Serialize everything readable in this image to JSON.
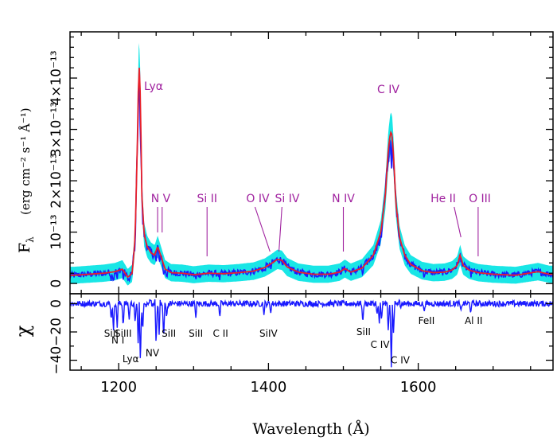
{
  "chart_data": [
    {
      "type": "line",
      "panel": "top",
      "ylabel_main": "F",
      "ylabel_sub": "λ",
      "ylabel_units": "(erg cm⁻² s⁻¹ Å⁻¹)",
      "xlim": [
        1135,
        1780
      ],
      "ylim": [
        -0.2,
        4.9
      ],
      "yscale_note": "×10⁻¹³",
      "y_ticks": [
        {
          "value": 0,
          "label": "0"
        },
        {
          "value": 1,
          "label": "10⁻¹³"
        },
        {
          "value": 2,
          "label": "2×10⁻¹³"
        },
        {
          "value": 3,
          "label": "3×10⁻¹³"
        },
        {
          "value": 4,
          "label": "4×10⁻¹³"
        }
      ],
      "colors": {
        "error_band": "#19e6e6",
        "data": "#1a1aff",
        "model": "#e8202a",
        "annotation": "#a0229f"
      },
      "series": [
        {
          "name": "model",
          "x": [
            1140,
            1160,
            1180,
            1195,
            1205,
            1212,
            1218,
            1222,
            1225,
            1227,
            1229,
            1231,
            1234,
            1238,
            1243,
            1248,
            1252,
            1256,
            1262,
            1270,
            1285,
            1300,
            1320,
            1340,
            1360,
            1380,
            1395,
            1405,
            1412,
            1418,
            1425,
            1440,
            1460,
            1480,
            1495,
            1502,
            1510,
            1525,
            1540,
            1550,
            1556,
            1560,
            1563,
            1565,
            1567,
            1570,
            1575,
            1582,
            1590,
            1605,
            1620,
            1635,
            1645,
            1652,
            1656,
            1660,
            1668,
            1680,
            1700,
            1730,
            1760,
            1775
          ],
          "y": [
            0.16,
            0.18,
            0.2,
            0.23,
            0.28,
            0.12,
            0.2,
            0.9,
            2.8,
            4.35,
            3.6,
            1.7,
            0.95,
            0.72,
            0.6,
            0.55,
            0.72,
            0.55,
            0.28,
            0.21,
            0.2,
            0.17,
            0.2,
            0.19,
            0.21,
            0.24,
            0.31,
            0.4,
            0.47,
            0.45,
            0.32,
            0.22,
            0.18,
            0.18,
            0.22,
            0.29,
            0.22,
            0.3,
            0.55,
            1.0,
            1.7,
            2.6,
            2.95,
            2.9,
            2.5,
            1.6,
            0.9,
            0.55,
            0.37,
            0.25,
            0.21,
            0.22,
            0.26,
            0.35,
            0.56,
            0.35,
            0.26,
            0.21,
            0.18,
            0.16,
            0.23,
            0.18
          ]
        }
      ],
      "annotations": [
        {
          "label": "Lyα",
          "x": 1231,
          "y_tip": 3.95
        },
        {
          "label": "N V",
          "x": 1252,
          "y_tip": 0.7
        },
        {
          "label": "N V",
          "x": 1258,
          "y_tip": 0.7
        },
        {
          "label": "Si II",
          "x": 1318,
          "y_tip": 0.45
        },
        {
          "label": "O IV",
          "x": 1402,
          "y_tip": 0.6
        },
        {
          "label": "Si IV",
          "x": 1414,
          "y_tip": 0.6
        },
        {
          "label": "N IV",
          "x": 1500,
          "y_tip": 0.6
        },
        {
          "label": "C IV",
          "x": 1564,
          "y_tip": 3.0
        },
        {
          "label": "He II",
          "x": 1656,
          "y_tip": 0.8
        },
        {
          "label": "O III",
          "x": 1679,
          "y_tip": 0.5
        }
      ],
      "annotation_text": {
        "lya": "Lyα",
        "nv": "N V",
        "siii": "Si II",
        "oiv": "O IV",
        "siiv": "Si IV",
        "niv": "N IV",
        "civ": "C IV",
        "heii": "He II",
        "oiii": "O III"
      }
    },
    {
      "type": "line",
      "panel": "bottom",
      "ylabel": "χ",
      "xlabel": "Wavelength (Å)",
      "xlim": [
        1135,
        1780
      ],
      "ylim": [
        -47,
        7
      ],
      "x_ticks": [
        {
          "value": 1200,
          "label": "1200"
        },
        {
          "value": 1400,
          "label": "1400"
        },
        {
          "value": 1600,
          "label": "1600"
        }
      ],
      "y_ticks": [
        {
          "value": 0,
          "label": "0"
        },
        {
          "value": -20,
          "label": "−20"
        },
        {
          "value": -40,
          "label": "−40"
        }
      ],
      "absorption_dips": [
        {
          "x": 1190,
          "depth": -12
        },
        {
          "x": 1193,
          "depth": -20
        },
        {
          "x": 1198,
          "depth": -17
        },
        {
          "x": 1206,
          "depth": -17
        },
        {
          "x": 1214,
          "depth": -12
        },
        {
          "x": 1222,
          "depth": -14
        },
        {
          "x": 1226,
          "depth": -28
        },
        {
          "x": 1229,
          "depth": -44
        },
        {
          "x": 1232,
          "depth": -20
        },
        {
          "x": 1250,
          "depth": -30
        },
        {
          "x": 1254,
          "depth": -22
        },
        {
          "x": 1260,
          "depth": -26
        },
        {
          "x": 1264,
          "depth": -10
        },
        {
          "x": 1303,
          "depth": -10
        },
        {
          "x": 1335,
          "depth": -10
        },
        {
          "x": 1394,
          "depth": -8
        },
        {
          "x": 1403,
          "depth": -7
        },
        {
          "x": 1526,
          "depth": -14
        },
        {
          "x": 1545,
          "depth": -8
        },
        {
          "x": 1548,
          "depth": -14
        },
        {
          "x": 1551,
          "depth": -12
        },
        {
          "x": 1560,
          "depth": -20
        },
        {
          "x": 1564,
          "depth": -48
        },
        {
          "x": 1567,
          "depth": -22
        },
        {
          "x": 1608,
          "depth": -6
        },
        {
          "x": 1657,
          "depth": -5
        },
        {
          "x": 1670,
          "depth": -7
        }
      ],
      "labels": [
        {
          "text": "SiII",
          "x": 1190,
          "y": -21,
          "color": "black"
        },
        {
          "text": "SiIII",
          "x": 1206,
          "y": -21,
          "color": "black"
        },
        {
          "text": "N I",
          "x": 1199,
          "y": -26,
          "color": "black"
        },
        {
          "text": "Lyα",
          "x": 1216,
          "y": -39,
          "color": "orange"
        },
        {
          "text": "NV",
          "x": 1245,
          "y": -35,
          "color": "orange"
        },
        {
          "text": "SiII",
          "x": 1267,
          "y": -21,
          "color": "black"
        },
        {
          "text": "SiII",
          "x": 1303,
          "y": -21,
          "color": "black"
        },
        {
          "text": "C II",
          "x": 1336,
          "y": -21,
          "color": "black"
        },
        {
          "text": "SiIV",
          "x": 1400,
          "y": -21,
          "color": "black"
        },
        {
          "text": "SiII",
          "x": 1527,
          "y": -20,
          "color": "black"
        },
        {
          "text": "C IV",
          "x": 1549,
          "y": -29,
          "color": "black"
        },
        {
          "text": "C IV",
          "x": 1576,
          "y": -40,
          "color": "orange"
        },
        {
          "text": "FeII",
          "x": 1611,
          "y": -12,
          "color": "black"
        },
        {
          "text": "Al II",
          "x": 1674,
          "y": -12,
          "color": "black"
        }
      ]
    }
  ]
}
